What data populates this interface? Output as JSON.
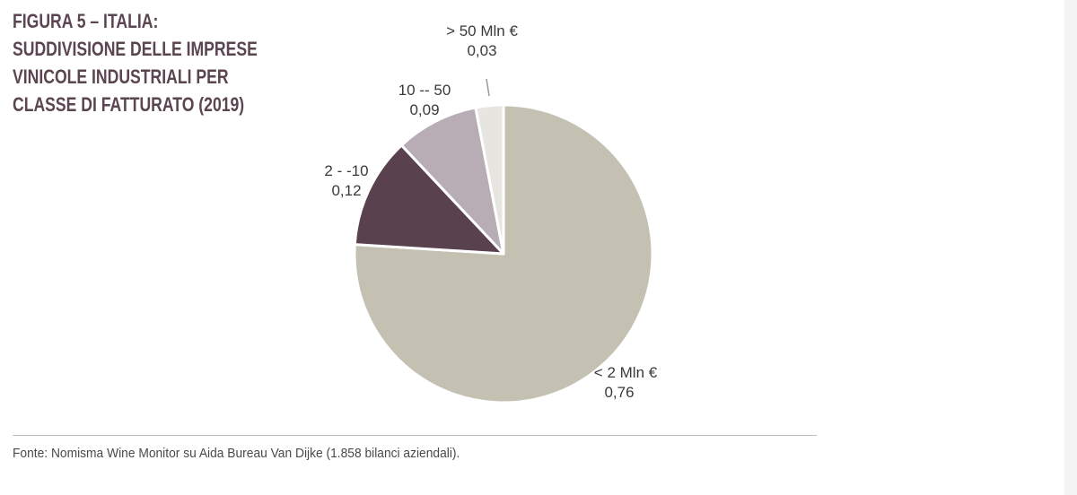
{
  "figure": {
    "title_lines": [
      "FIGURA 5 – ITALIA:",
      "SUDDIVISIONE DELLE IMPRESE",
      "VINICOLE INDUSTRIALI PER",
      "CLASSE DI FATTURATO (2019)"
    ],
    "source": "Fonte: Nomisma Wine Monitor su Aida Bureau Van Dijke (1.858 bilanci aziendali)."
  },
  "chart_data": {
    "type": "pie",
    "start": "12 o'clock",
    "direction": "clockwise",
    "slices": [
      {
        "label": "< 2 Mln €",
        "value_label": "0,76",
        "value": 0.76,
        "color": "#c4c1b3"
      },
      {
        "label": "2 - -10",
        "value_label": "0,12",
        "value": 0.12,
        "color": "#5a414e"
      },
      {
        "label": "10 -- 50",
        "value_label": "0,09",
        "value": 0.09,
        "color": "#b8adb5"
      },
      {
        "label": "> 50 Mln €",
        "value_label": "0,03",
        "value": 0.03,
        "color": "#e6e5e0"
      }
    ]
  }
}
